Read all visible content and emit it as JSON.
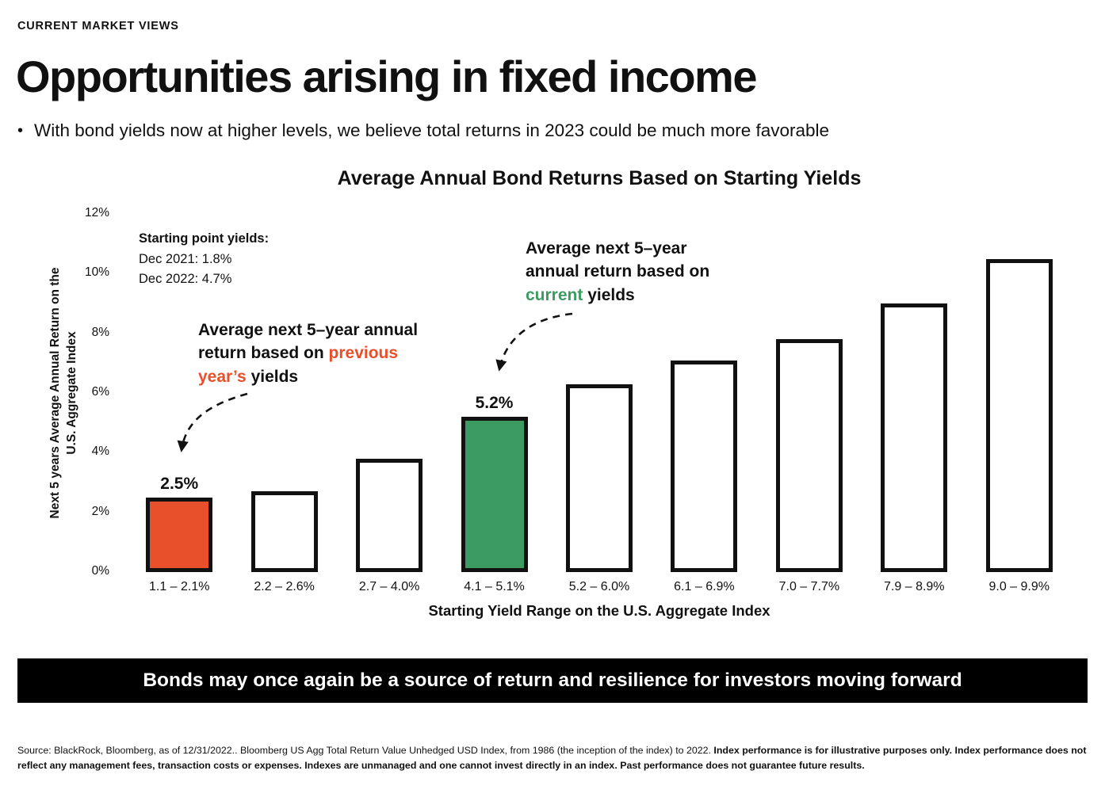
{
  "page": {
    "eyebrow": "CURRENT MARKET VIEWS",
    "title": "Opportunities arising in fixed income",
    "bullet_marker": "•",
    "bullet": "With bond yields now at higher levels, we believe total returns in 2023 could be much more favorable"
  },
  "chart_data": {
    "type": "bar",
    "title": "Average Annual Bond Returns Based on Starting Yields",
    "categories": [
      "1.1 – 2.1%",
      "2.2 – 2.6%",
      "2.7 – 4.0%",
      "4.1 – 5.1%",
      "5.2 – 6.0%",
      "6.1 – 6.9%",
      "7.0 – 7.7%",
      "7.9 – 8.9%",
      "9.0 – 9.9%"
    ],
    "values": [
      2.5,
      2.7,
      3.8,
      5.2,
      6.3,
      7.1,
      7.8,
      9.0,
      10.5
    ],
    "value_labels": [
      "2.5%",
      "",
      "",
      "5.2%",
      "",
      "",
      "",
      "",
      ""
    ],
    "bar_colors": [
      "#E8502B",
      "#FFFFFF",
      "#FFFFFF",
      "#3B9B63",
      "#FFFFFF",
      "#FFFFFF",
      "#FFFFFF",
      "#FFFFFF",
      "#FFFFFF"
    ],
    "bar_border_color": "#111111",
    "xlabel": "Starting Yield Range on the U.S. Aggregate Index",
    "ylabel": "Next 5 years Average Annual Return on the U.S. Aggregate Index",
    "ylabel_line1": "Next 5 years Average Annual Return on the",
    "ylabel_line2": "U.S. Aggregate Index",
    "ylim": [
      0,
      12
    ],
    "yticks": [
      0,
      2,
      4,
      6,
      8,
      10,
      12
    ],
    "ytick_labels": [
      "0%",
      "2%",
      "4%",
      "6%",
      "8%",
      "10%",
      "12%"
    ],
    "grid": false,
    "legend": false
  },
  "annotations": {
    "starting_yields": {
      "heading": "Starting point yields:",
      "line1": "Dec 2021: 1.8%",
      "line2": "Dec 2022: 4.7%"
    },
    "previous_yields": {
      "pre": "Average next 5–year annual return based on ",
      "highlight": "previous year’s",
      "post": " yields",
      "highlight_color": "#E8502B"
    },
    "current_yields": {
      "pre": "Average next 5–year annual return based on ",
      "highlight": "current",
      "post": " yields",
      "highlight_color": "#3B9B63"
    }
  },
  "banner": {
    "text": "Bonds may once again be a source of return and resilience for investors moving forward",
    "background": "#000000"
  },
  "footnote": {
    "regular": "Source: BlackRock, Bloomberg, as of 12/31/2022.. Bloomberg US Agg Total Return Value Unhedged USD Index, from 1986 (the inception of the index) to 2022. ",
    "bold": "Index performance is for illustrative purposes only. Index performance does not reflect any management fees, transaction costs or expenses. Indexes are unmanaged and one cannot invest directly in an index. Past performance does not guarantee future results."
  }
}
